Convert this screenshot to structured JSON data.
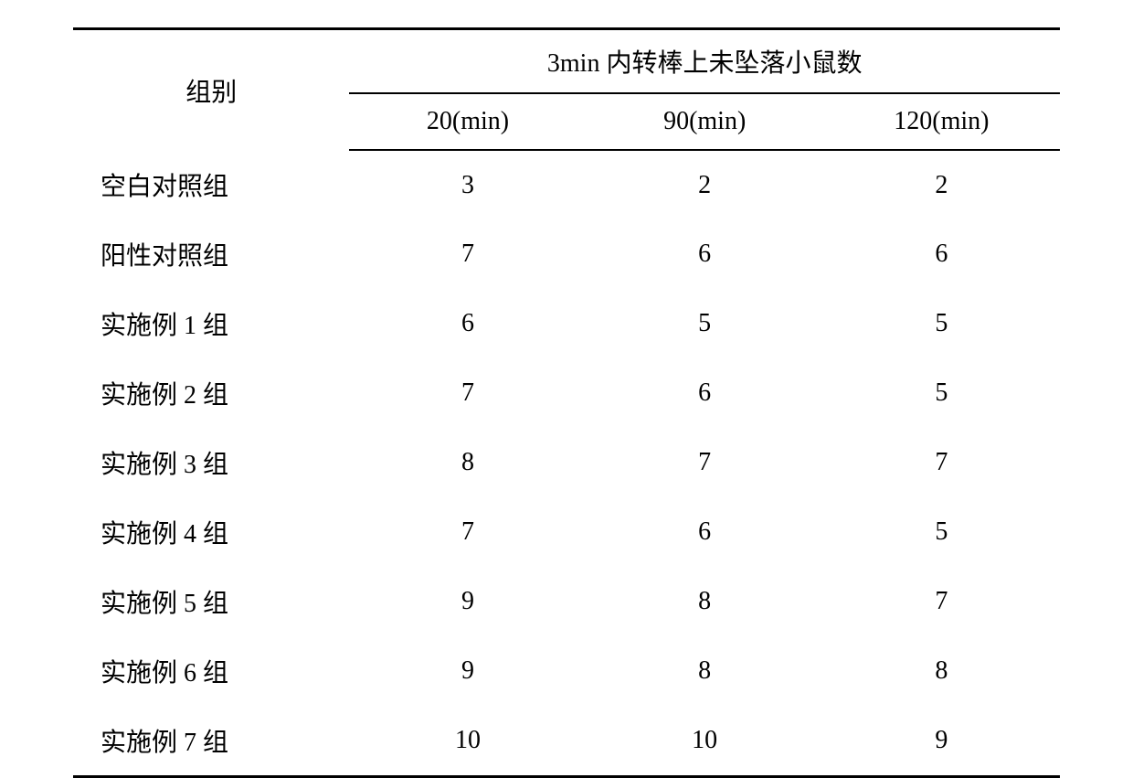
{
  "table": {
    "type": "table",
    "group_header": "组别",
    "spanner_header": "3min 内转棒上未坠落小鼠数",
    "time_columns": [
      "20(min)",
      "90(min)",
      "120(min)"
    ],
    "rows": [
      {
        "label": "空白对照组",
        "values": [
          "3",
          "2",
          "2"
        ]
      },
      {
        "label": "阳性对照组",
        "values": [
          "7",
          "6",
          "6"
        ]
      },
      {
        "label": "实施例 1 组",
        "values": [
          "6",
          "5",
          "5"
        ]
      },
      {
        "label": "实施例 2 组",
        "values": [
          "7",
          "6",
          "5"
        ]
      },
      {
        "label": "实施例 3 组",
        "values": [
          "8",
          "7",
          "7"
        ]
      },
      {
        "label": "实施例 4 组",
        "values": [
          "7",
          "6",
          "5"
        ]
      },
      {
        "label": "实施例 5 组",
        "values": [
          "9",
          "8",
          "7"
        ]
      },
      {
        "label": "实施例 6 组",
        "values": [
          "9",
          "8",
          "8"
        ]
      },
      {
        "label": "实施例 7 组",
        "values": [
          "10",
          "10",
          "9"
        ]
      }
    ],
    "colors": {
      "background": "#ffffff",
      "text": "#000000",
      "border": "#000000"
    },
    "fontsize_body": 28,
    "border_top_width": 3,
    "border_mid_width": 2,
    "border_bottom_width": 3
  }
}
